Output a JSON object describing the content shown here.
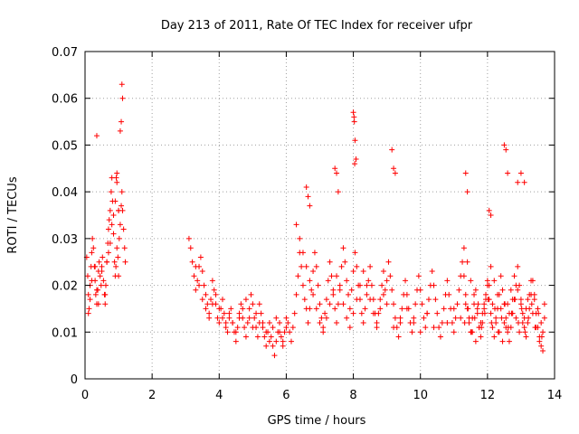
{
  "chart_data": {
    "type": "scatter",
    "title": "Day 213 of 2011, Rate Of TEC Index for receiver ufpr",
    "xlabel": "GPS time / hours",
    "ylabel": "ROTI / TECUs",
    "xlim": [
      0,
      14
    ],
    "ylim": [
      0,
      0.07
    ],
    "xticks": [
      "0",
      "2",
      "4",
      "6",
      "8",
      "10",
      "12",
      "14"
    ],
    "yticks": [
      "0",
      "0.01",
      "0.02",
      "0.03",
      "0.04",
      "0.05",
      "0.06",
      "0.07"
    ],
    "grid": true,
    "marker": "plus",
    "color": "#ff0000",
    "series": [
      {
        "x": [
          0.05,
          0.08,
          0.1,
          0.12,
          0.15,
          0.18,
          0.2,
          0.22,
          0.25,
          0.28,
          0.3,
          0.32,
          0.35,
          0.38,
          0.4,
          0.42,
          0.45,
          0.48,
          0.5,
          0.52,
          0.55,
          0.58,
          0.6,
          0.62,
          0.65,
          0.68,
          0.7,
          0.72,
          0.75,
          0.78,
          0.8,
          0.82,
          0.85,
          0.88,
          0.9,
          0.92,
          0.95,
          0.98,
          1.0,
          1.02,
          1.05,
          1.08,
          1.1,
          1.12,
          1.15,
          1.18,
          1.2,
          0.1,
          0.15,
          0.2,
          0.3,
          0.35,
          0.4,
          0.5,
          0.6,
          0.65,
          0.7,
          0.75,
          0.8,
          0.85,
          0.9,
          0.95,
          1.0,
          3.1,
          3.15,
          3.2,
          3.25,
          3.3,
          3.35,
          3.4,
          3.45,
          3.5,
          3.55,
          3.6,
          3.65,
          3.7,
          3.75,
          3.8,
          3.85,
          3.9,
          3.95,
          4.0,
          4.05,
          4.1,
          4.15,
          4.2,
          4.25,
          4.3,
          4.35,
          4.4,
          4.45,
          4.5,
          4.55,
          4.6,
          4.65,
          4.7,
          4.75,
          4.8,
          4.85,
          4.9,
          4.95,
          5.0,
          5.05,
          5.1,
          5.15,
          5.2,
          5.25,
          5.3,
          5.35,
          5.4,
          5.45,
          5.5,
          5.55,
          5.6,
          5.65,
          5.7,
          5.75,
          5.8,
          5.85,
          5.9,
          5.95,
          6.0,
          3.3,
          3.4,
          3.5,
          3.6,
          3.7,
          3.8,
          3.9,
          4.0,
          4.1,
          4.2,
          4.3,
          4.4,
          4.5,
          4.6,
          4.7,
          4.8,
          4.9,
          5.0,
          5.1,
          5.2,
          5.3,
          5.4,
          5.5,
          5.6,
          5.7,
          5.8,
          5.9,
          6.0,
          6.05,
          6.1,
          6.15,
          6.2,
          6.25,
          6.3,
          6.35,
          6.4,
          6.45,
          6.5,
          6.55,
          6.6,
          6.65,
          6.7,
          6.75,
          6.8,
          6.85,
          6.9,
          6.95,
          7.0,
          7.05,
          7.1,
          7.15,
          7.2,
          7.25,
          7.3,
          7.35,
          7.4,
          7.45,
          7.5,
          7.55,
          7.6,
          7.65,
          7.7,
          7.75,
          7.8,
          7.85,
          7.9,
          7.95,
          8.0,
          8.05,
          8.1,
          8.15,
          8.2,
          8.25,
          8.3,
          8.35,
          8.4,
          8.45,
          8.5,
          8.55,
          8.6,
          8.65,
          8.7,
          8.75,
          8.8,
          8.85,
          8.9,
          8.95,
          9.0,
          6.3,
          6.4,
          6.5,
          6.6,
          6.7,
          6.8,
          6.9,
          7.0,
          7.1,
          7.2,
          7.3,
          7.4,
          7.5,
          7.6,
          7.7,
          7.8,
          7.9,
          8.0,
          8.1,
          8.2,
          8.3,
          8.4,
          8.5,
          8.6,
          8.7,
          8.8,
          8.9,
          9.0,
          9.05,
          9.1,
          9.15,
          9.2,
          9.25,
          9.3,
          9.35,
          9.4,
          9.45,
          9.5,
          9.55,
          9.6,
          9.65,
          9.7,
          9.75,
          9.8,
          9.85,
          9.9,
          9.95,
          10.0,
          10.05,
          10.1,
          10.15,
          10.2,
          10.25,
          10.3,
          10.35,
          10.4,
          10.45,
          10.5,
          10.55,
          10.6,
          10.65,
          10.7,
          10.75,
          10.8,
          10.85,
          10.9,
          10.95,
          11.0,
          11.05,
          11.1,
          11.15,
          11.2,
          11.25,
          11.3,
          9.2,
          9.4,
          9.6,
          9.8,
          10.0,
          10.2,
          10.4,
          10.6,
          10.8,
          11.0,
          11.2,
          11.3,
          11.35,
          11.4,
          11.45,
          11.5,
          11.55,
          11.6,
          11.65,
          11.7,
          11.75,
          11.8,
          11.85,
          11.9,
          11.95,
          12.0,
          12.05,
          12.1,
          12.15,
          12.2,
          12.25,
          12.3,
          12.35,
          12.4,
          12.45,
          12.5,
          12.55,
          12.6,
          12.65,
          12.7,
          12.75,
          12.8,
          12.85,
          12.9,
          12.95,
          13.0,
          13.05,
          13.1,
          13.15,
          13.2,
          13.25,
          13.3,
          13.35,
          13.4,
          13.45,
          13.5,
          13.55,
          13.6,
          13.65,
          13.7,
          11.35,
          11.45,
          11.55,
          11.65,
          11.75,
          11.85,
          11.95,
          12.05,
          12.15,
          12.25,
          12.35,
          12.45,
          12.55,
          12.65,
          12.75,
          12.85,
          12.95,
          13.05,
          13.15,
          13.25,
          13.35,
          13.45,
          13.55,
          13.65,
          11.4,
          11.5,
          11.6,
          11.7,
          11.8,
          11.9,
          12.0,
          12.1,
          12.2,
          12.3,
          12.4,
          12.5,
          12.6,
          12.7,
          12.8,
          12.9,
          13.0,
          13.1,
          13.2,
          13.3,
          13.4,
          13.5,
          13.6,
          13.7,
          11.32,
          11.42,
          11.52,
          11.62,
          11.72,
          11.82,
          11.92,
          12.02,
          12.12,
          12.22,
          12.32,
          12.42,
          12.52,
          12.62,
          12.72,
          12.82,
          12.92,
          13.02,
          13.12,
          13.22,
          13.32,
          13.42,
          13.52,
          13.62,
          0.35,
          1.1,
          1.12,
          1.08,
          1.05,
          0.95,
          0.93,
          1.0,
          6.6,
          6.65,
          6.7,
          7.45,
          7.5,
          7.55,
          8.0,
          8.02,
          8.05,
          8.08,
          9.15,
          9.2,
          9.25,
          11.35,
          11.4,
          12.05,
          12.1,
          12.5,
          12.55,
          12.6,
          12.9,
          13.0,
          13.1,
          8.04,
          8.03
        ],
        "y": [
          0.026,
          0.022,
          0.018,
          0.015,
          0.02,
          0.024,
          0.027,
          0.03,
          0.028,
          0.024,
          0.021,
          0.018,
          0.016,
          0.019,
          0.023,
          0.025,
          0.022,
          0.02,
          0.024,
          0.026,
          0.021,
          0.018,
          0.016,
          0.02,
          0.025,
          0.029,
          0.032,
          0.034,
          0.036,
          0.04,
          0.043,
          0.038,
          0.031,
          0.025,
          0.022,
          0.024,
          0.028,
          0.026,
          0.022,
          0.03,
          0.033,
          0.037,
          0.04,
          0.036,
          0.032,
          0.028,
          0.025,
          0.014,
          0.017,
          0.021,
          0.024,
          0.019,
          0.016,
          0.023,
          0.018,
          0.025,
          0.027,
          0.029,
          0.033,
          0.035,
          0.038,
          0.042,
          0.036,
          0.03,
          0.028,
          0.025,
          0.022,
          0.019,
          0.021,
          0.024,
          0.026,
          0.023,
          0.02,
          0.018,
          0.016,
          0.014,
          0.017,
          0.021,
          0.019,
          0.016,
          0.013,
          0.012,
          0.015,
          0.017,
          0.014,
          0.012,
          0.01,
          0.013,
          0.015,
          0.012,
          0.01,
          0.008,
          0.011,
          0.014,
          0.016,
          0.013,
          0.011,
          0.009,
          0.012,
          0.015,
          0.018,
          0.016,
          0.013,
          0.011,
          0.009,
          0.012,
          0.014,
          0.011,
          0.009,
          0.007,
          0.01,
          0.012,
          0.009,
          0.007,
          0.005,
          0.008,
          0.01,
          0.012,
          0.009,
          0.007,
          0.01,
          0.013,
          0.024,
          0.02,
          0.017,
          0.015,
          0.013,
          0.016,
          0.018,
          0.015,
          0.013,
          0.011,
          0.014,
          0.012,
          0.01,
          0.013,
          0.015,
          0.017,
          0.013,
          0.011,
          0.014,
          0.016,
          0.012,
          0.01,
          0.008,
          0.011,
          0.013,
          0.01,
          0.008,
          0.011,
          0.012,
          0.01,
          0.008,
          0.011,
          0.014,
          0.018,
          0.022,
          0.027,
          0.024,
          0.02,
          0.017,
          0.015,
          0.012,
          0.015,
          0.019,
          0.023,
          0.027,
          0.024,
          0.02,
          0.016,
          0.013,
          0.011,
          0.014,
          0.017,
          0.021,
          0.025,
          0.022,
          0.018,
          0.015,
          0.012,
          0.016,
          0.02,
          0.024,
          0.028,
          0.025,
          0.021,
          0.018,
          0.015,
          0.019,
          0.023,
          0.027,
          0.024,
          0.02,
          0.017,
          0.014,
          0.012,
          0.015,
          0.018,
          0.021,
          0.024,
          0.02,
          0.017,
          0.014,
          0.011,
          0.014,
          0.017,
          0.02,
          0.023,
          0.019,
          0.016,
          0.033,
          0.03,
          0.027,
          0.024,
          0.021,
          0.018,
          0.015,
          0.012,
          0.01,
          0.013,
          0.016,
          0.019,
          0.022,
          0.019,
          0.016,
          0.013,
          0.011,
          0.014,
          0.017,
          0.02,
          0.023,
          0.02,
          0.017,
          0.014,
          0.012,
          0.015,
          0.018,
          0.021,
          0.025,
          0.022,
          0.019,
          0.016,
          0.013,
          0.011,
          0.009,
          0.012,
          0.015,
          0.018,
          0.021,
          0.018,
          0.015,
          0.012,
          0.01,
          0.013,
          0.016,
          0.019,
          0.022,
          0.019,
          0.016,
          0.013,
          0.011,
          0.014,
          0.017,
          0.02,
          0.023,
          0.02,
          0.017,
          0.014,
          0.011,
          0.009,
          0.012,
          0.015,
          0.018,
          0.021,
          0.018,
          0.015,
          0.012,
          0.01,
          0.013,
          0.016,
          0.019,
          0.022,
          0.025,
          0.028,
          0.011,
          0.013,
          0.015,
          0.012,
          0.01,
          0.014,
          0.011,
          0.009,
          0.012,
          0.015,
          0.013,
          0.022,
          0.018,
          0.015,
          0.012,
          0.01,
          0.013,
          0.016,
          0.019,
          0.014,
          0.011,
          0.009,
          0.012,
          0.015,
          0.018,
          0.021,
          0.017,
          0.014,
          0.011,
          0.009,
          0.012,
          0.015,
          0.018,
          0.022,
          0.019,
          0.016,
          0.013,
          0.01,
          0.008,
          0.011,
          0.014,
          0.017,
          0.02,
          0.024,
          0.02,
          0.017,
          0.014,
          0.011,
          0.009,
          0.012,
          0.015,
          0.018,
          0.021,
          0.017,
          0.014,
          0.011,
          0.009,
          0.007,
          0.01,
          0.013,
          0.016,
          0.013,
          0.01,
          0.008,
          0.011,
          0.014,
          0.017,
          0.02,
          0.016,
          0.013,
          0.01,
          0.008,
          0.011,
          0.014,
          0.017,
          0.013,
          0.01,
          0.012,
          0.015,
          0.018,
          0.014,
          0.011,
          0.008,
          0.006,
          0.025,
          0.021,
          0.018,
          0.015,
          0.012,
          0.016,
          0.02,
          0.024,
          0.021,
          0.018,
          0.015,
          0.012,
          0.016,
          0.019,
          0.022,
          0.019,
          0.016,
          0.013,
          0.017,
          0.021,
          0.018,
          0.015,
          0.012,
          0.016,
          0.012,
          0.015,
          0.01,
          0.013,
          0.016,
          0.011,
          0.014,
          0.017,
          0.012,
          0.015,
          0.01,
          0.013,
          0.016,
          0.011,
          0.014,
          0.017,
          0.012,
          0.015,
          0.01,
          0.013,
          0.016,
          0.011,
          0.014,
          0.009,
          0.052,
          0.063,
          0.06,
          0.055,
          0.053,
          0.044,
          0.043,
          0.036,
          0.041,
          0.039,
          0.037,
          0.045,
          0.044,
          0.04,
          0.057,
          0.056,
          0.051,
          0.047,
          0.049,
          0.045,
          0.044,
          0.044,
          0.04,
          0.036,
          0.035,
          0.05,
          0.049,
          0.044,
          0.042,
          0.044,
          0.042,
          0.046,
          0.055
        ]
      }
    ]
  }
}
